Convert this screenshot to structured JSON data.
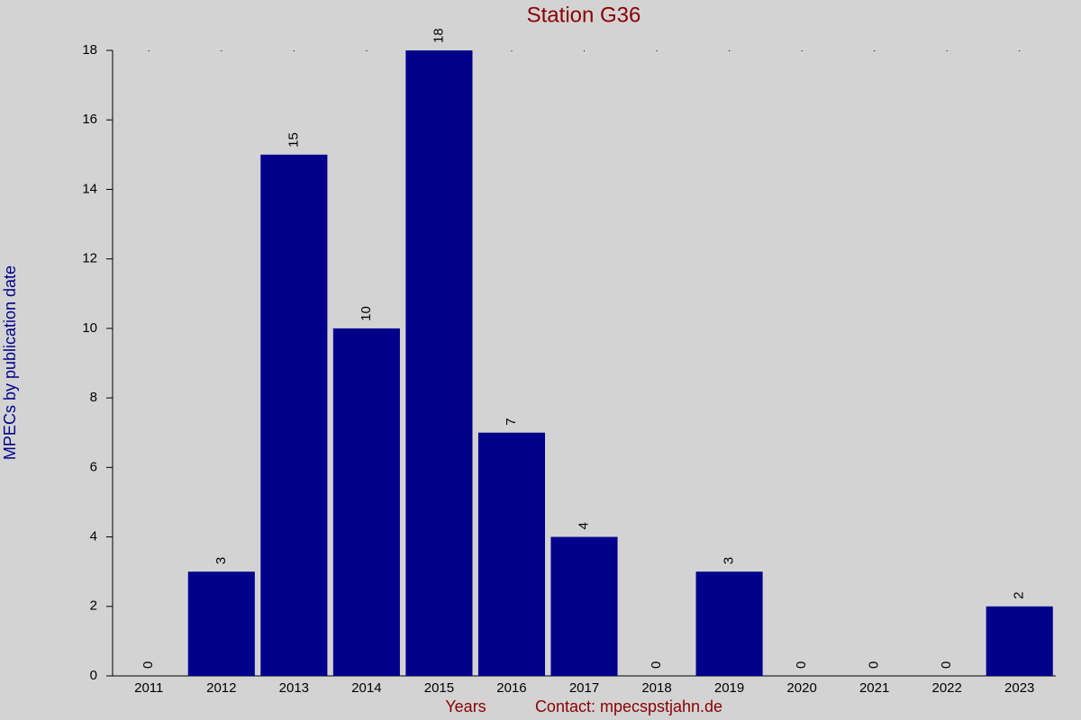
{
  "chart_data": {
    "type": "bar",
    "title": "Station G36",
    "xlabel": "Years",
    "annotation": "Contact: mpecspstjahn.de",
    "ylabel": "MPECs by publication date",
    "categories": [
      "2011",
      "2012",
      "2013",
      "2014",
      "2015",
      "2016",
      "2017",
      "2018",
      "2019",
      "2020",
      "2021",
      "2022",
      "2023"
    ],
    "values": [
      0,
      3,
      15,
      10,
      18,
      7,
      4,
      0,
      3,
      0,
      0,
      0,
      2
    ],
    "color": "#00008b",
    "ylim": [
      0,
      18
    ],
    "yticks": [
      0,
      2,
      4,
      6,
      8,
      10,
      12,
      14,
      16,
      18
    ],
    "grid": false
  }
}
